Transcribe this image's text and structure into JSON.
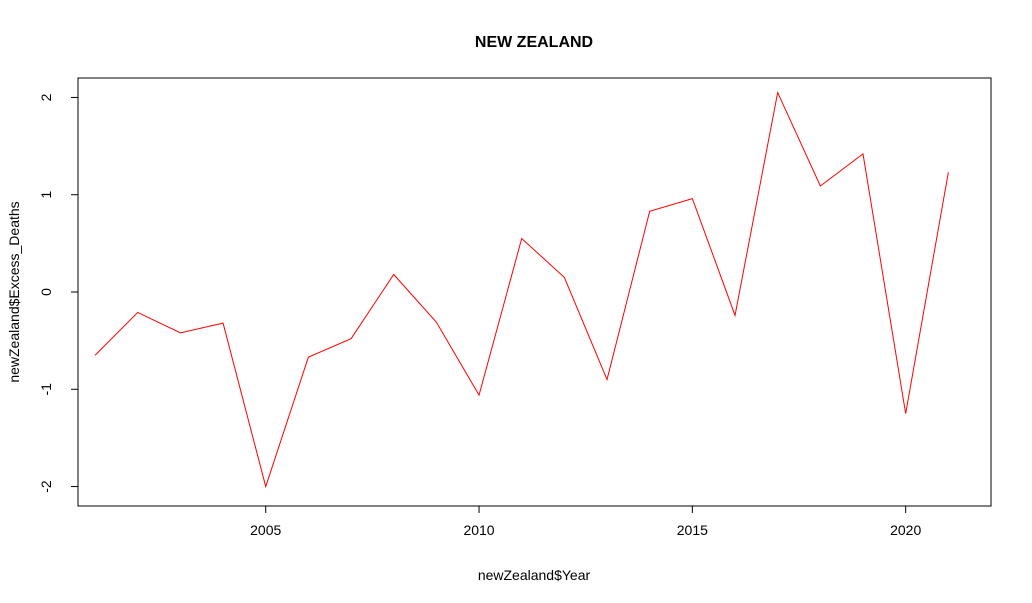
{
  "chart_data": {
    "type": "line",
    "title": "NEW ZEALAND",
    "xlabel": "newZealand$Year",
    "ylabel": "newZealand$Excess_Deaths",
    "xlim": [
      2000.6,
      2022.0
    ],
    "ylim": [
      -2.2,
      2.2
    ],
    "xticks": [
      2005,
      2010,
      2015,
      2020
    ],
    "yticks": [
      -2,
      -1,
      0,
      1,
      2
    ],
    "grid": false,
    "line_color": "#ff0000",
    "series": [
      {
        "x": [
          2001,
          2002,
          2003,
          2004,
          2005,
          2006,
          2007,
          2008,
          2009,
          2010,
          2011,
          2012,
          2013,
          2014,
          2015,
          2016,
          2017,
          2018,
          2019,
          2020,
          2021
        ],
        "values": [
          -0.65,
          -0.21,
          -0.42,
          -0.32,
          -2.0,
          -0.67,
          -0.48,
          0.18,
          -0.31,
          -1.06,
          0.55,
          0.15,
          -0.9,
          0.83,
          0.96,
          -0.24,
          2.05,
          1.09,
          1.42,
          -1.25,
          1.23
        ]
      }
    ]
  }
}
